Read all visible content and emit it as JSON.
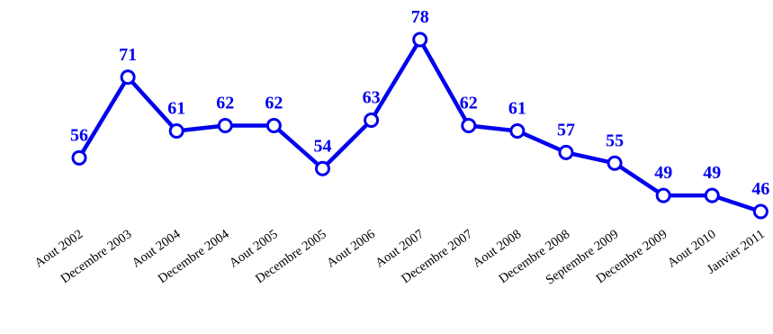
{
  "chart_data": {
    "type": "line",
    "categories": [
      "Aout 2002",
      "Decembre 2003",
      "Aout 2004",
      "Decembre 2004",
      "Aout 2005",
      "Decembre 2005",
      "Aout 2006",
      "Aout 2007",
      "Decembre 2007",
      "Aout 2008",
      "Decembre 2008",
      "Septembre 2009",
      "Decembre 2009",
      "Aout 2010",
      "Janvier 2011"
    ],
    "series": [
      {
        "values": [
          56,
          71,
          61,
          62,
          62,
          54,
          63,
          78,
          62,
          61,
          57,
          55,
          49,
          49,
          46
        ]
      }
    ],
    "data_labels": [
      "56",
      "71",
      "61",
      "62",
      "62",
      "54",
      "63",
      "78",
      "62",
      "61",
      "57",
      "55",
      "49",
      "49",
      "46"
    ],
    "ylim": [
      46,
      78
    ],
    "grid": false,
    "legend": "none",
    "colors": {
      "line": "#0000ee",
      "marker_fill": "#ffffff",
      "label": "#0000ee",
      "tick_text": "#000000"
    }
  }
}
